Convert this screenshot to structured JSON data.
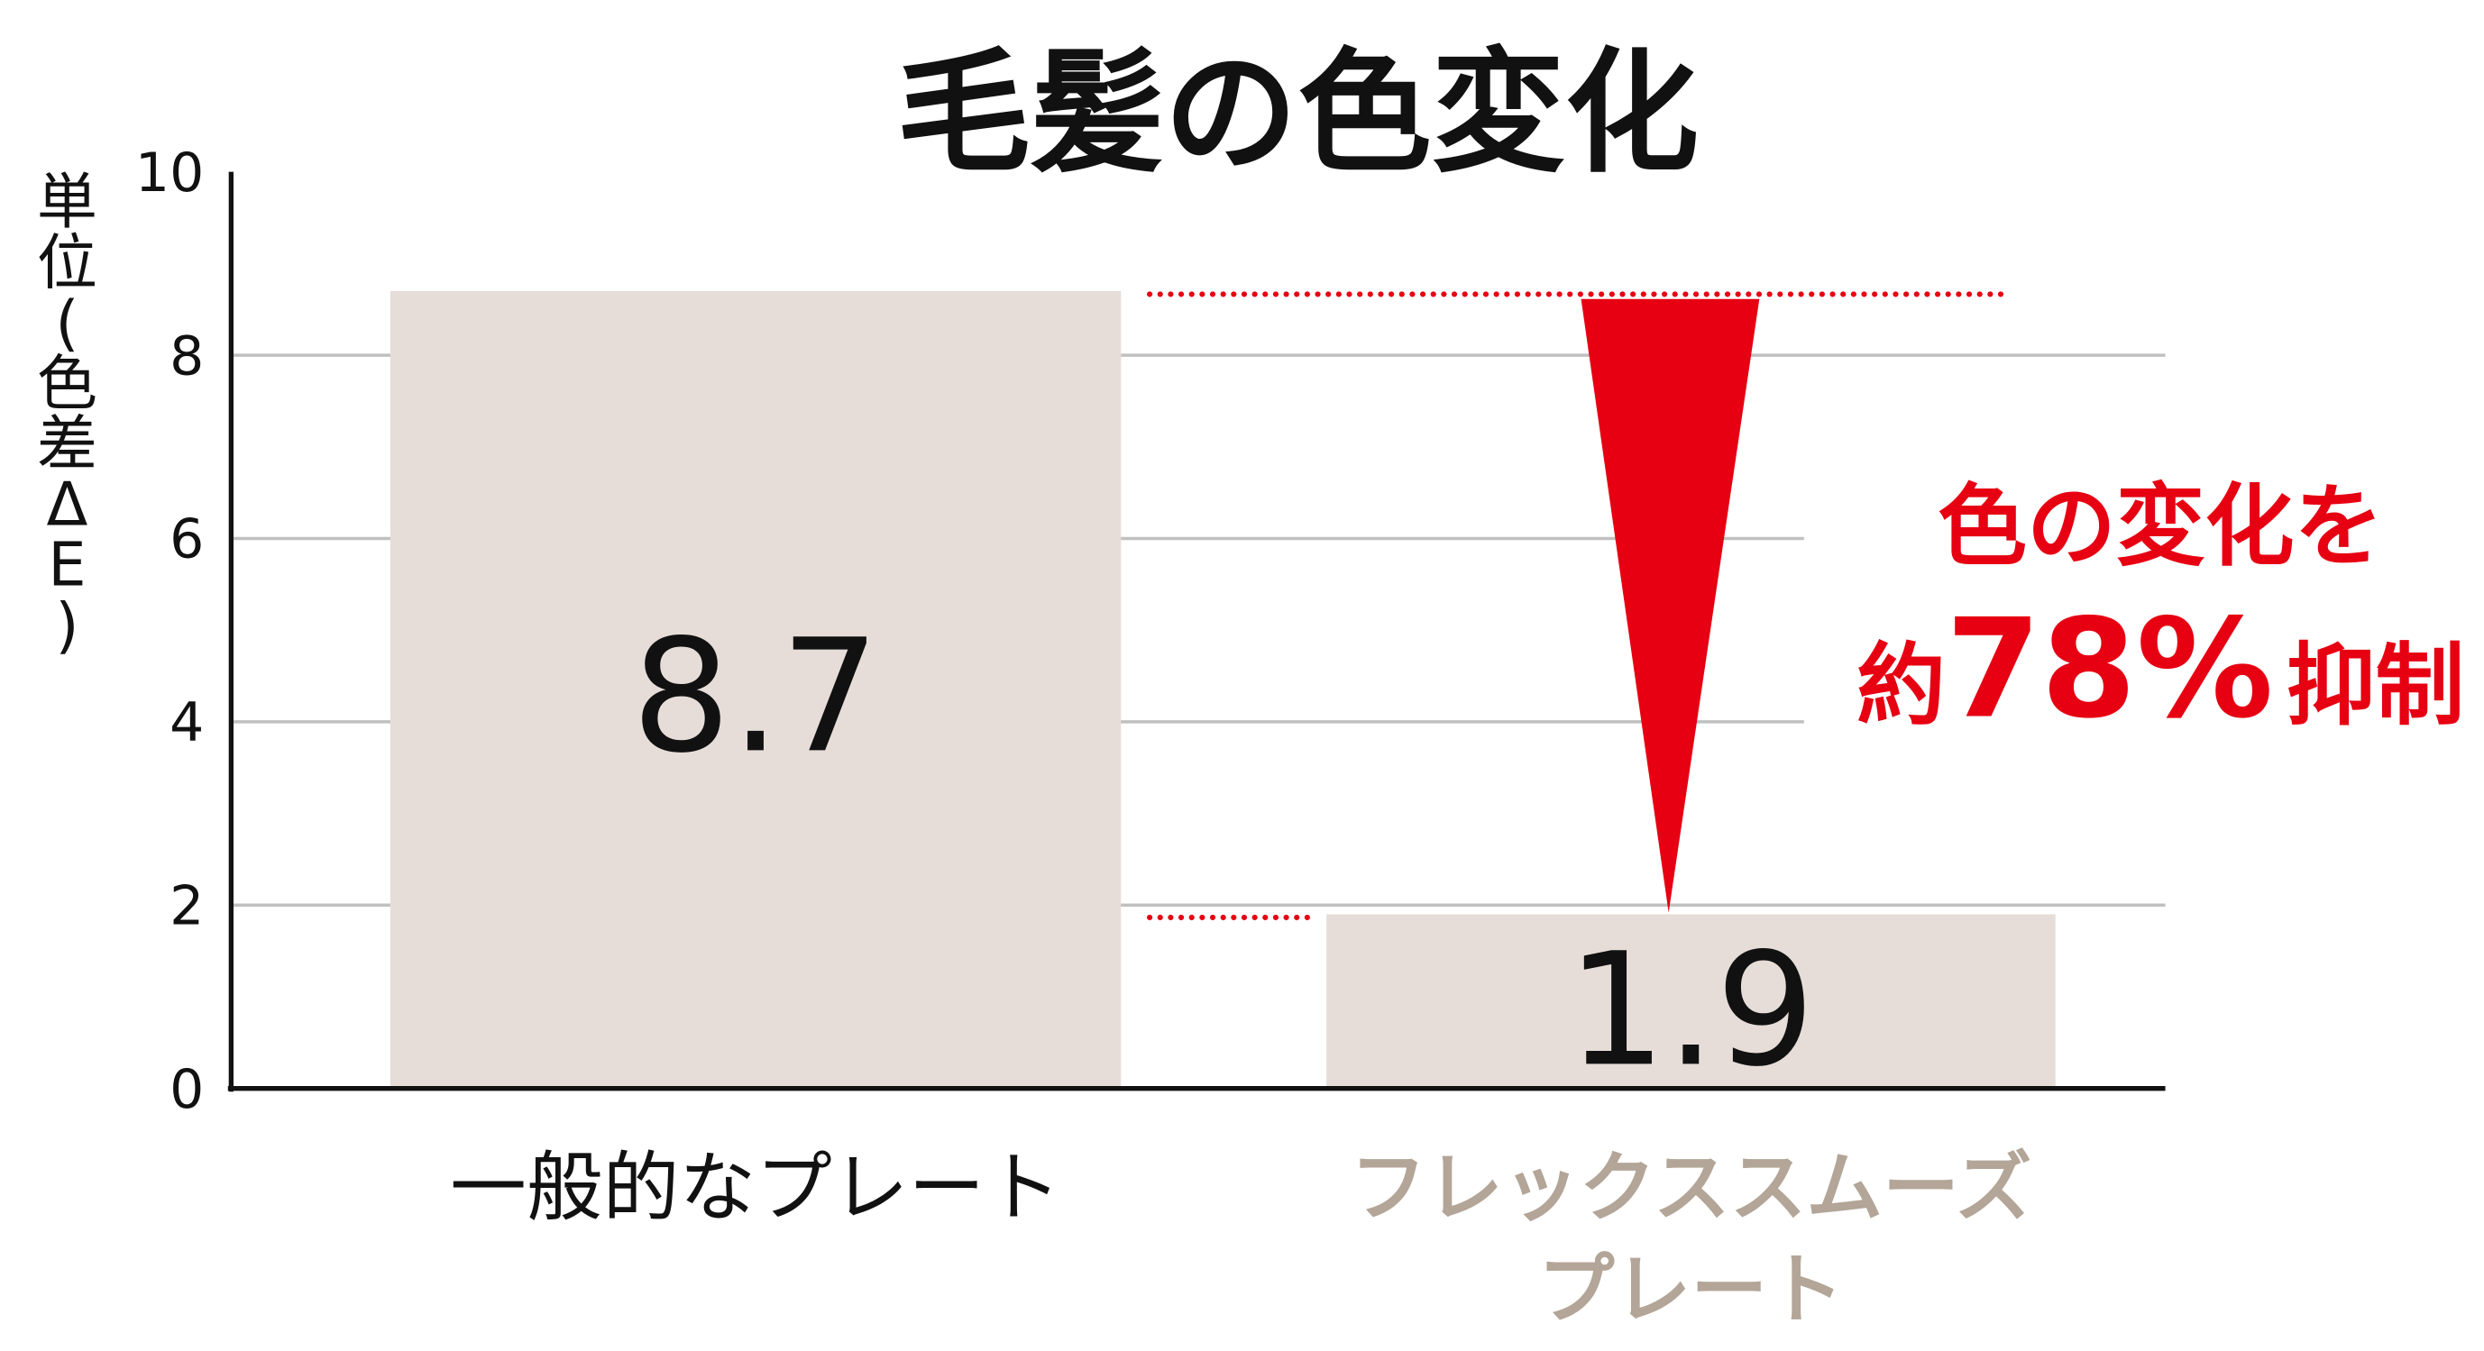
{
  "chart_data": {
    "type": "bar",
    "title": "毛髪の色変化",
    "ylabel_chars": [
      "単",
      "位",
      "(",
      "色",
      "差",
      "Δ",
      "E",
      ")"
    ],
    "ylabel": "単位(色差ΔE)",
    "ylim": [
      0,
      10
    ],
    "yticks": [
      "0",
      "2",
      "4",
      "6",
      "8",
      "10"
    ],
    "grid": true,
    "categories": [
      "一般的なプレート",
      "フレックススムーズプレート"
    ],
    "category_lines": [
      [
        "一般的なプレート"
      ],
      [
        "フレックススムーズ",
        "プレート"
      ]
    ],
    "values": [
      8.7,
      1.9
    ],
    "value_labels": [
      "8.7",
      "1.9"
    ],
    "annotation": {
      "line1": "色の変化を",
      "prefix": "約",
      "percent": "78%",
      "suffix": "抑制"
    },
    "colors": {
      "bar": "#e6ddd9",
      "accent": "#e60012",
      "grid": "#c0c0c0",
      "category_highlight": "#b3a597",
      "text": "#111111"
    }
  }
}
